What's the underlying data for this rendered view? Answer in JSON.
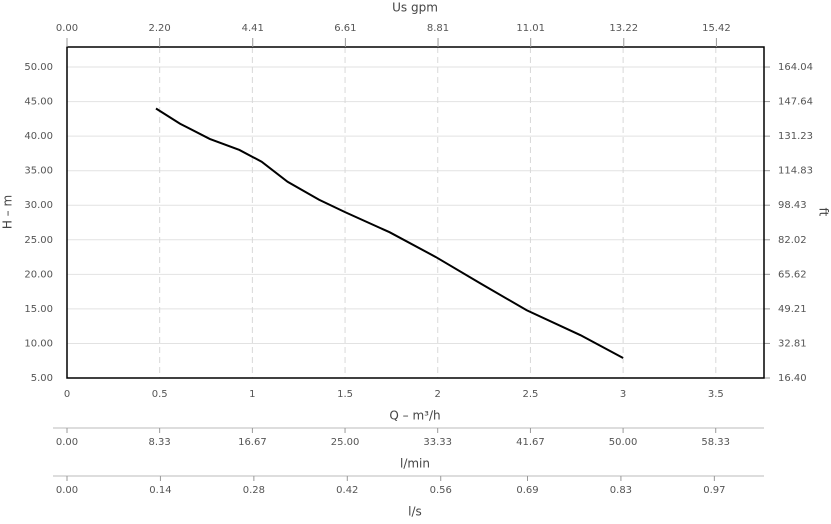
{
  "chart_data": {
    "type": "line",
    "x_label": "Q – m³/h",
    "y_label": "H – m",
    "y2_label": "ft",
    "x": [
      0.48,
      0.61,
      0.77,
      0.93,
      1.05,
      1.19,
      1.36,
      1.5,
      1.74,
      1.99,
      2.23,
      2.48,
      2.77,
      3.0
    ],
    "series": [
      {
        "color": "#000000",
        "values": [
          44.0,
          41.8,
          39.6,
          38.0,
          36.3,
          33.4,
          30.8,
          29.0,
          26.1,
          22.5,
          18.7,
          14.8,
          11.2,
          7.9
        ]
      }
    ],
    "xlim": [
      0,
      3.76
    ],
    "xticks": [
      0,
      0.5,
      1,
      1.5,
      2,
      2.5,
      3,
      3.5
    ],
    "ylim": [
      5,
      52.9
    ],
    "yticks": [
      {
        "value": 5,
        "label": "5.00"
      },
      {
        "value": 10,
        "label": "10.00"
      },
      {
        "value": 15,
        "label": "15.00"
      },
      {
        "value": 20,
        "label": "20.00"
      },
      {
        "value": 25,
        "label": "25.00"
      },
      {
        "value": 30,
        "label": "30.00"
      },
      {
        "value": 35,
        "label": "35.00"
      },
      {
        "value": 40,
        "label": "40.00"
      },
      {
        "value": 45,
        "label": "45.00"
      },
      {
        "value": 50,
        "label": "50.00"
      }
    ],
    "y2lim": [
      16.4,
      173.55
    ],
    "y2ticks": [
      {
        "value": 16.4,
        "label": "16.40"
      },
      32.81,
      {
        "value": 49.21,
        "label": "49.21"
      },
      {
        "value": 65.62,
        "label": "65.62"
      },
      {
        "value": 82.02,
        "label": "82.02"
      },
      98.43,
      {
        "value": 114.83,
        "label": "114.83"
      },
      {
        "value": 131.23,
        "label": "131.23"
      },
      {
        "value": 147.64,
        "label": "147.64"
      },
      {
        "value": 164.04,
        "label": "164.04"
      }
    ],
    "grid": true,
    "extra_x_axes": [
      {
        "position": "top",
        "label": "Us gpm",
        "xlim": [
          0,
          16.55
        ],
        "xticks": [
          {
            "value": 0,
            "label": "0.00"
          },
          {
            "value": 2.2,
            "label": "2.20"
          },
          4.41,
          6.61,
          8.81,
          11.01,
          13.22,
          15.42
        ]
      },
      {
        "position": "bottom",
        "label": "l/min",
        "xlim": [
          0,
          62.67
        ],
        "xticks": [
          {
            "value": 0,
            "label": "0.00"
          },
          8.33,
          16.67,
          {
            "value": 25,
            "label": "25.00"
          },
          33.33,
          41.67,
          {
            "value": 50,
            "label": "50.00"
          },
          58.33
        ]
      },
      {
        "position": "bottom",
        "label": "l/s",
        "xlim": [
          0,
          1.0444
        ],
        "xticks": [
          {
            "value": 0,
            "label": "0.00"
          },
          0.14,
          0.28,
          0.42,
          0.56,
          0.69,
          0.83,
          0.97
        ]
      }
    ]
  }
}
